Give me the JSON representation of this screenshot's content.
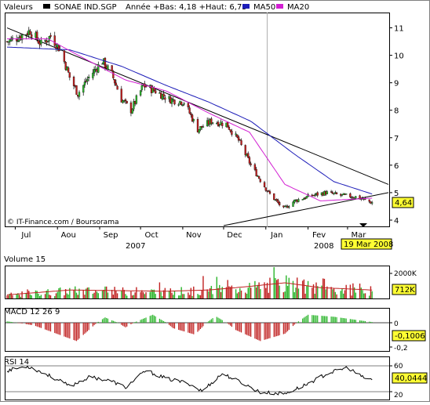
{
  "header": {
    "label": "Valeurs",
    "ticker": "SONAE IND.SGP",
    "stats": "Année +Bas: 4,18 +Haut: 6,75",
    "ma50_label": "MA50",
    "ma20_label": "MA20"
  },
  "copyright": "© IT-Finance.com / Boursorama",
  "last_price_badge": "4,64",
  "date_badge": "19 Mar 2008",
  "colors": {
    "up_candle": "#2bb52b",
    "down_candle": "#c02020",
    "ma50": "#1c1cb8",
    "ma20": "#d21fd2",
    "trendline": "#000000",
    "badge_bg": "#ffff33",
    "macd_hist_pos": "#2bb52b",
    "macd_hist_neg": "#c02020",
    "volume_pos": "#2bb52b",
    "volume_neg": "#c02020",
    "volume_ma": "#c02020"
  },
  "x_axis": {
    "months": [
      "Jul",
      "Aou",
      "Sep",
      "Oct",
      "Nov",
      "Dec",
      "Jan",
      "Fev",
      "Mar"
    ],
    "years": [
      "2007",
      "2008"
    ]
  },
  "chart_data": [
    {
      "type": "candlestick",
      "panel": "price",
      "title": "SONAE IND.SGP",
      "y_ticks": [
        "11",
        "10",
        "9",
        "8",
        "7",
        "6",
        "5",
        "4"
      ],
      "ylim": [
        3.8,
        11.5
      ],
      "log_scale": false,
      "grid": false,
      "series": [
        {
          "name": "MA50"
        },
        {
          "name": "MA20"
        }
      ],
      "ohlc_knots": [
        {
          "date": "2007-06-25",
          "close": 10.5
        },
        {
          "date": "2007-07-05",
          "close": 10.7
        },
        {
          "date": "2007-07-12",
          "close": 10.9
        },
        {
          "date": "2007-07-20",
          "close": 10.4
        },
        {
          "date": "2007-07-27",
          "close": 10.7
        },
        {
          "date": "2007-08-03",
          "close": 10.2
        },
        {
          "date": "2007-08-10",
          "close": 9.2
        },
        {
          "date": "2007-08-16",
          "close": 8.6
        },
        {
          "date": "2007-08-24",
          "close": 9.2
        },
        {
          "date": "2007-09-03",
          "close": 9.8
        },
        {
          "date": "2007-09-10",
          "close": 9.3
        },
        {
          "date": "2007-09-17",
          "close": 8.4
        },
        {
          "date": "2007-09-24",
          "close": 8.0
        },
        {
          "date": "2007-10-03",
          "close": 8.9
        },
        {
          "date": "2007-10-12",
          "close": 8.7
        },
        {
          "date": "2007-10-22",
          "close": 8.4
        },
        {
          "date": "2007-11-02",
          "close": 8.3
        },
        {
          "date": "2007-11-12",
          "close": 7.3
        },
        {
          "date": "2007-11-22",
          "close": 7.6
        },
        {
          "date": "2007-12-03",
          "close": 7.5
        },
        {
          "date": "2007-12-12",
          "close": 6.9
        },
        {
          "date": "2007-12-21",
          "close": 6.0
        },
        {
          "date": "2008-01-03",
          "close": 5.0
        },
        {
          "date": "2008-01-14",
          "close": 4.4
        },
        {
          "date": "2008-01-22",
          "close": 4.7
        },
        {
          "date": "2008-02-04",
          "close": 4.9
        },
        {
          "date": "2008-02-14",
          "close": 5.0
        },
        {
          "date": "2008-02-25",
          "close": 4.9
        },
        {
          "date": "2008-03-07",
          "close": 4.85
        },
        {
          "date": "2008-03-19",
          "close": 4.64
        }
      ],
      "ma50_knots": [
        {
          "date": "2007-06-25",
          "value": 10.3
        },
        {
          "date": "2007-08-10",
          "value": 10.2
        },
        {
          "date": "2007-09-17",
          "value": 9.6
        },
        {
          "date": "2007-10-20",
          "value": 8.9
        },
        {
          "date": "2007-11-20",
          "value": 8.3
        },
        {
          "date": "2007-12-21",
          "value": 7.6
        },
        {
          "date": "2008-01-22",
          "value": 6.4
        },
        {
          "date": "2008-02-20",
          "value": 5.4
        },
        {
          "date": "2008-03-19",
          "value": 4.95
        }
      ],
      "ma20_knots": [
        {
          "date": "2007-06-25",
          "value": 10.6
        },
        {
          "date": "2007-07-25",
          "value": 10.6
        },
        {
          "date": "2007-08-20",
          "value": 9.9
        },
        {
          "date": "2007-09-20",
          "value": 9.1
        },
        {
          "date": "2007-10-20",
          "value": 8.7
        },
        {
          "date": "2007-11-20",
          "value": 7.9
        },
        {
          "date": "2007-12-20",
          "value": 7.2
        },
        {
          "date": "2008-01-15",
          "value": 5.3
        },
        {
          "date": "2008-02-10",
          "value": 4.7
        },
        {
          "date": "2008-03-19",
          "value": 4.8
        }
      ],
      "trendlines": [
        {
          "from": {
            "date": "2007-06-25",
            "value": 11.0
          },
          "to": {
            "date": "2008-03-31",
            "value": 5.3
          }
        },
        {
          "from": {
            "date": "2007-12-01",
            "value": 3.8
          },
          "to": {
            "date": "2008-03-31",
            "value": 5.0
          }
        }
      ],
      "last_value": 4.64,
      "last_date": "19 Mar 2008"
    },
    {
      "type": "bar",
      "panel": "volume",
      "title": "Volume 15",
      "y_ticks": [
        "2000K"
      ],
      "last_value_label": "712K",
      "ylim": [
        0,
        2600000
      ],
      "series": [
        {
          "name": "Volume 15",
          "type": "line"
        }
      ],
      "volume_knots": [
        {
          "date": "2007-06-25",
          "value": 300000
        },
        {
          "date": "2007-08-10",
          "value": 700000
        },
        {
          "date": "2007-09-15",
          "value": 650000
        },
        {
          "date": "2007-10-20",
          "value": 600000
        },
        {
          "date": "2007-11-20",
          "value": 700000
        },
        {
          "date": "2007-12-20",
          "value": 1000000
        },
        {
          "date": "2008-01-15",
          "value": 1300000
        },
        {
          "date": "2008-02-10",
          "value": 900000
        },
        {
          "date": "2008-03-19",
          "value": 700000
        }
      ]
    },
    {
      "type": "bar",
      "panel": "macd",
      "title": "MACD 12 26 9",
      "y_ticks": [
        "0",
        "-0,2"
      ],
      "last_value_label": "-0,1006",
      "ylim": [
        -0.3,
        0.2
      ],
      "histogram_knots": [
        {
          "date": "2007-06-25",
          "value": 0.02
        },
        {
          "date": "2007-07-15",
          "value": -0.03
        },
        {
          "date": "2007-08-15",
          "value": -0.2
        },
        {
          "date": "2007-09-05",
          "value": 0.08
        },
        {
          "date": "2007-09-20",
          "value": -0.05
        },
        {
          "date": "2007-10-10",
          "value": 0.12
        },
        {
          "date": "2007-10-25",
          "value": -0.06
        },
        {
          "date": "2007-11-10",
          "value": -0.13
        },
        {
          "date": "2007-11-25",
          "value": 0.1
        },
        {
          "date": "2007-12-10",
          "value": -0.08
        },
        {
          "date": "2007-12-28",
          "value": -0.2
        },
        {
          "date": "2008-01-15",
          "value": -0.12
        },
        {
          "date": "2008-02-01",
          "value": 0.12
        },
        {
          "date": "2008-02-20",
          "value": 0.09
        },
        {
          "date": "2008-03-19",
          "value": 0.01
        }
      ]
    },
    {
      "type": "line",
      "panel": "rsi",
      "title": "RSI 14",
      "y_ticks": [
        "60",
        "20"
      ],
      "last_value_label": "40,0444",
      "ylim": [
        10,
        75
      ],
      "rsi_knots": [
        {
          "date": "2007-06-25",
          "value": 55
        },
        {
          "date": "2007-07-10",
          "value": 62
        },
        {
          "date": "2007-07-25",
          "value": 48
        },
        {
          "date": "2007-08-10",
          "value": 30
        },
        {
          "date": "2007-08-25",
          "value": 45
        },
        {
          "date": "2007-09-10",
          "value": 38
        },
        {
          "date": "2007-09-20",
          "value": 28
        },
        {
          "date": "2007-10-05",
          "value": 55
        },
        {
          "date": "2007-10-20",
          "value": 42
        },
        {
          "date": "2007-11-05",
          "value": 35
        },
        {
          "date": "2007-11-15",
          "value": 22
        },
        {
          "date": "2007-11-30",
          "value": 50
        },
        {
          "date": "2007-12-15",
          "value": 35
        },
        {
          "date": "2007-12-28",
          "value": 20
        },
        {
          "date": "2008-01-15",
          "value": 18
        },
        {
          "date": "2008-01-30",
          "value": 32
        },
        {
          "date": "2008-02-15",
          "value": 50
        },
        {
          "date": "2008-03-01",
          "value": 60
        },
        {
          "date": "2008-03-12",
          "value": 44
        },
        {
          "date": "2008-03-19",
          "value": 40
        }
      ]
    }
  ]
}
